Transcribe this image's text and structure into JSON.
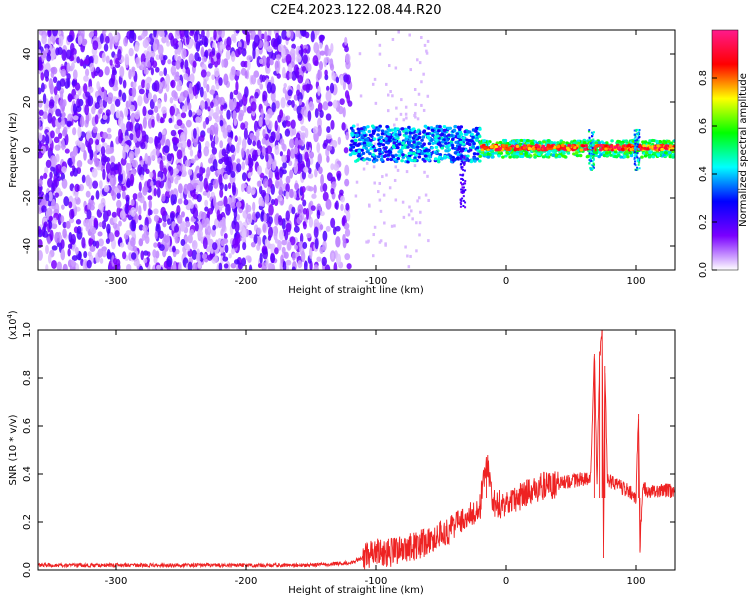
{
  "chart_data": [
    {
      "type": "heatmap",
      "title": "C2E4.2023.122.08.44.R20",
      "xlabel": "Height of straight line (km)",
      "ylabel": "Frequency (Hz)",
      "xlim": [
        -360,
        130
      ],
      "ylim": [
        -50,
        50
      ],
      "xticks": [
        -300,
        -200,
        -100,
        0,
        100
      ],
      "yticks": [
        -40,
        -20,
        0,
        20,
        40
      ],
      "colorbar": {
        "label": "Normalized spectral amplitude",
        "range": [
          0,
          1
        ],
        "ticks": [
          0.0,
          0.2,
          0.4,
          0.6,
          0.8
        ],
        "colors": [
          "#ffffff",
          "#7a00ff",
          "#0000ff",
          "#00ffff",
          "#00ff00",
          "#ffff00",
          "#ff0000",
          "#ff1a8c"
        ]
      },
      "regions": [
        {
          "x": [
            -360,
            -120
          ],
          "y": [
            -50,
            50
          ],
          "level": 0.15
        },
        {
          "x": [
            -120,
            -20
          ],
          "y": [
            -5,
            10
          ],
          "level": 0.35
        },
        {
          "x": [
            -20,
            130
          ],
          "y": [
            -3,
            4
          ],
          "level": 0.5
        },
        {
          "x": [
            -20,
            130
          ],
          "y": [
            0,
            2
          ],
          "level": 0.85
        }
      ]
    },
    {
      "type": "line",
      "xlabel": "Height of straight line (km)",
      "ylabel": "SNR (10 * v/v)",
      "y_multiplier": "(x10",
      "y_exponent": "4",
      "y_multiplier_close": ")",
      "xlim": [
        -360,
        130
      ],
      "ylim": [
        0,
        1.0
      ],
      "xticks": [
        -300,
        -200,
        -100,
        0,
        100
      ],
      "yticks": [
        0.0,
        0.2,
        0.4,
        0.6,
        0.8,
        1.0
      ],
      "series_color": "#ee2222",
      "series": [
        {
          "x": [
            -360,
            -300,
            -250,
            -200,
            -150,
            -120,
            -110,
            -100,
            -90,
            -80,
            -70,
            -60,
            -50,
            -40,
            -30,
            -20,
            -15,
            -10,
            0,
            10,
            20,
            30,
            40,
            50,
            60,
            65,
            68,
            70,
            72,
            74,
            75,
            76,
            78,
            80,
            85,
            90,
            95,
            100,
            102,
            103,
            105,
            110,
            120,
            130
          ],
          "y": [
            0.02,
            0.02,
            0.02,
            0.02,
            0.02,
            0.03,
            0.05,
            0.08,
            0.07,
            0.09,
            0.1,
            0.12,
            0.15,
            0.18,
            0.21,
            0.26,
            0.46,
            0.28,
            0.27,
            0.3,
            0.33,
            0.35,
            0.36,
            0.37,
            0.38,
            0.38,
            0.9,
            0.35,
            0.88,
            1.0,
            0.05,
            0.85,
            0.38,
            0.37,
            0.36,
            0.34,
            0.33,
            0.3,
            0.65,
            0.08,
            0.34,
            0.33,
            0.33,
            0.33
          ]
        }
      ]
    }
  ]
}
